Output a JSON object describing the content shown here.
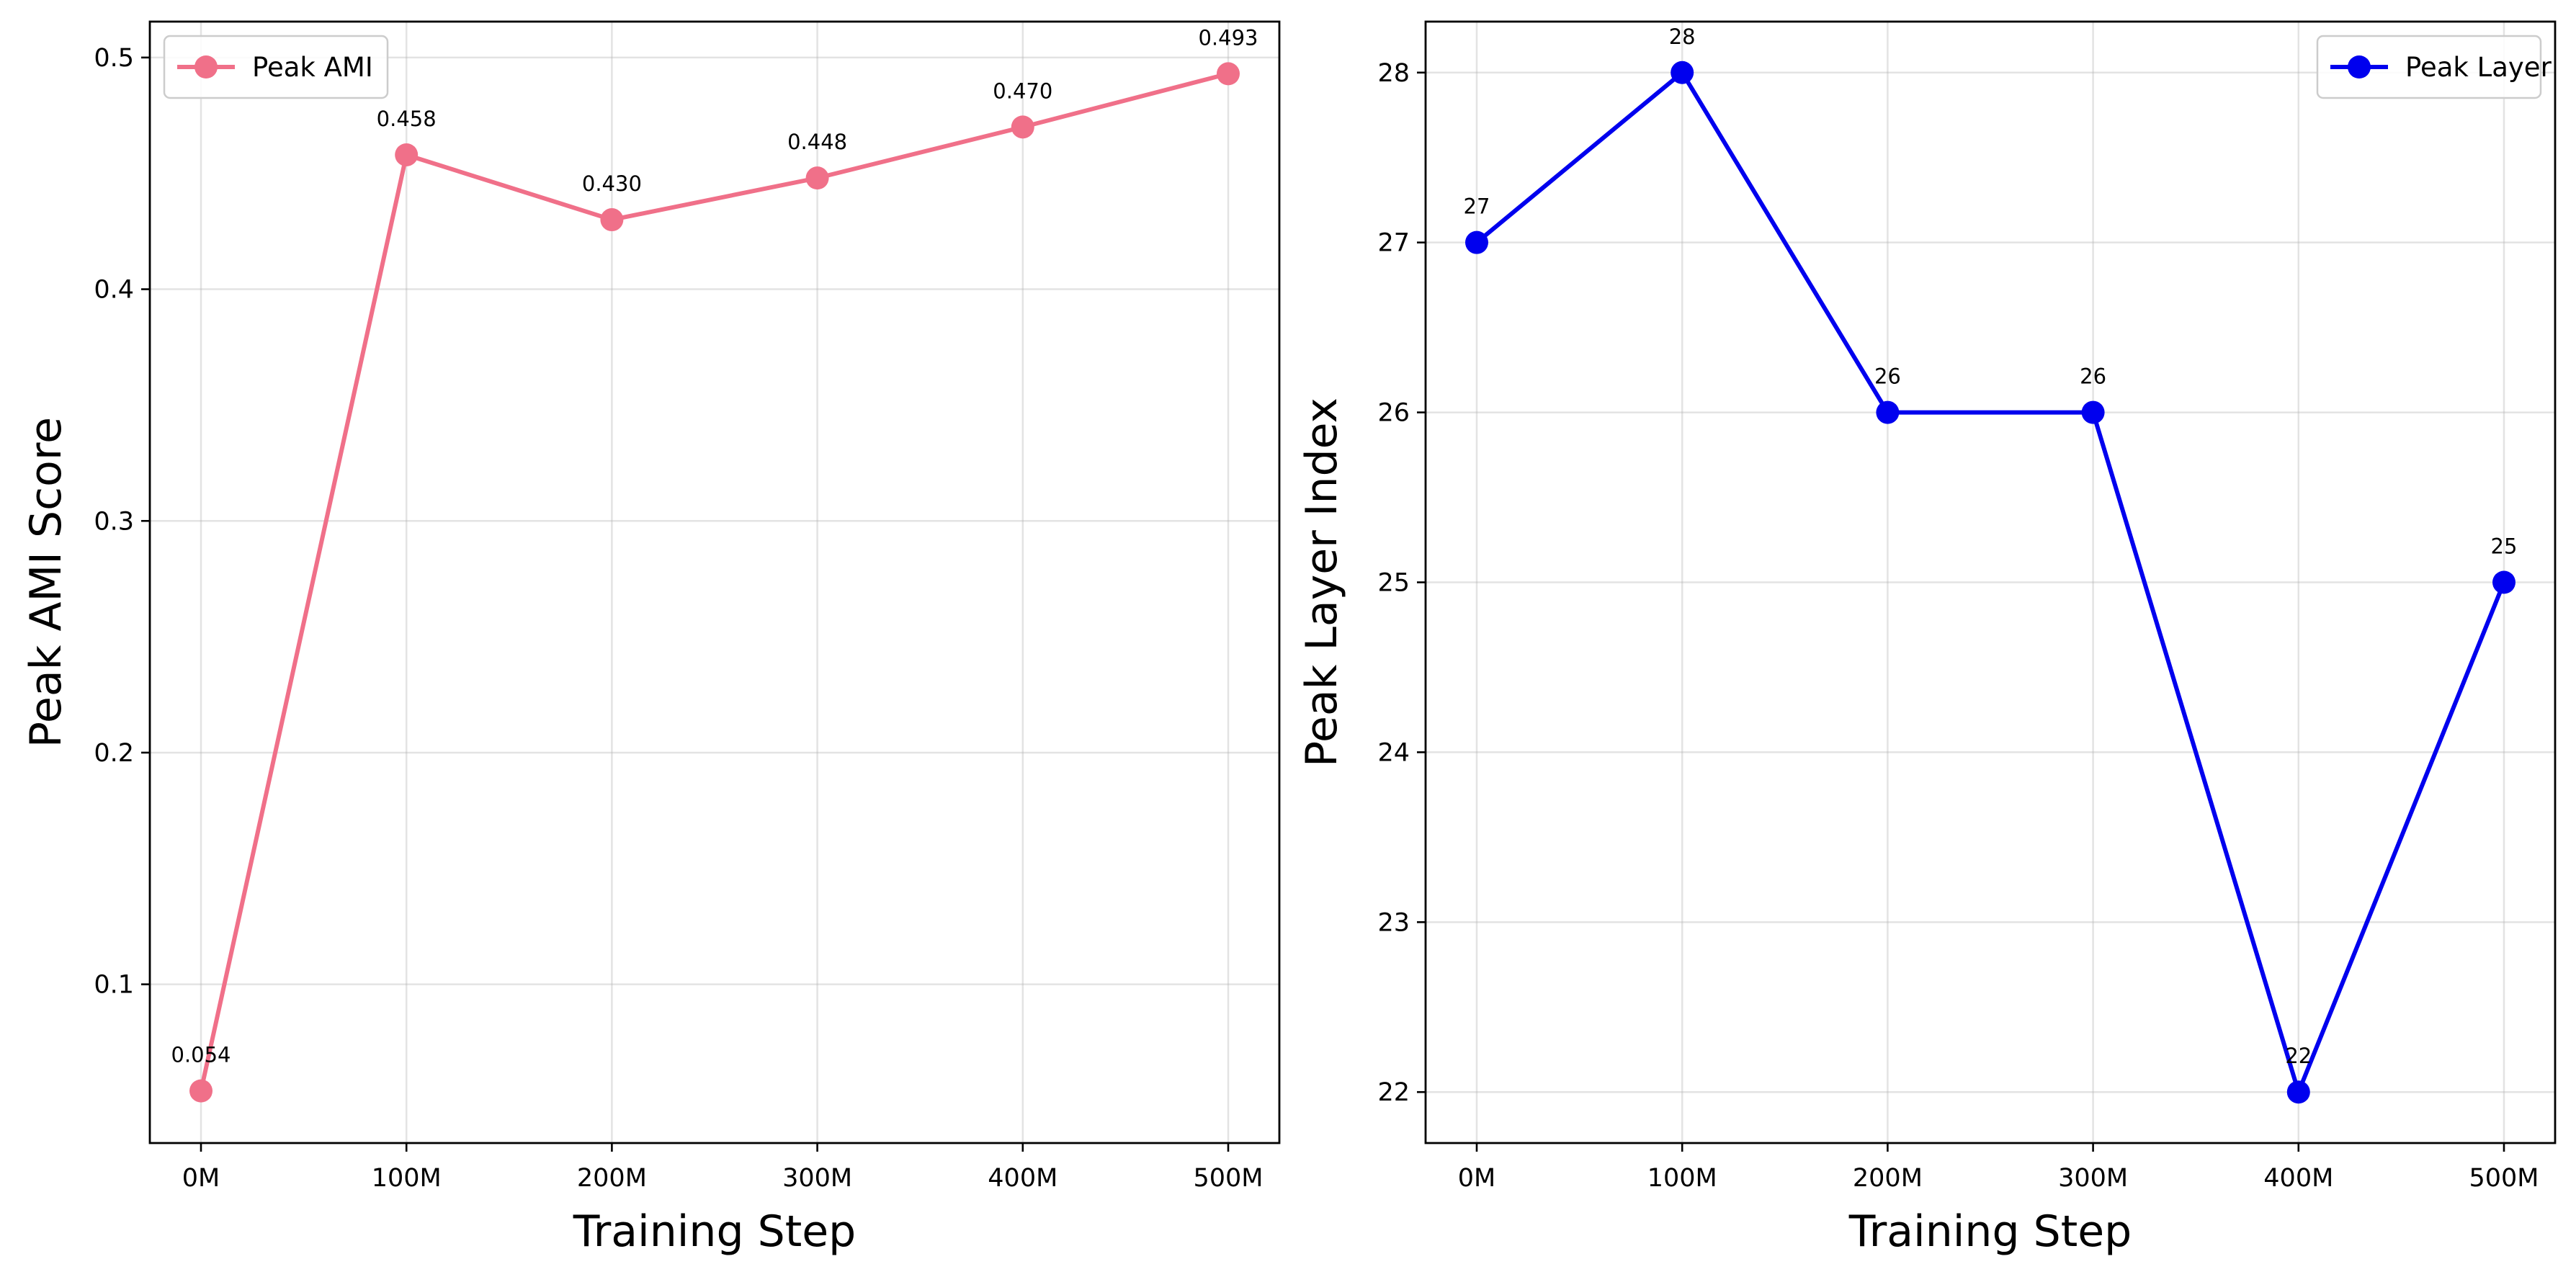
{
  "chart_data": [
    {
      "type": "line",
      "title": "",
      "xlabel": "Training Step",
      "ylabel": "Peak AMI Score",
      "categories": [
        "0M",
        "100M",
        "200M",
        "300M",
        "400M",
        "500M"
      ],
      "yticks": [
        "0.1",
        "0.2",
        "0.3",
        "0.4",
        "0.5"
      ],
      "ylim": [
        0.0315,
        0.5155
      ],
      "grid": true,
      "legend_position": "upper-left",
      "series": [
        {
          "name": "Peak AMI",
          "color": "#f07089",
          "values": [
            0.054,
            0.458,
            0.43,
            0.448,
            0.47,
            0.493
          ],
          "labels": [
            "0.054",
            "0.458",
            "0.430",
            "0.448",
            "0.470",
            "0.493"
          ]
        }
      ]
    },
    {
      "type": "line",
      "title": "",
      "xlabel": "Training Step",
      "ylabel": "Peak Layer Index",
      "categories": [
        "0M",
        "100M",
        "200M",
        "300M",
        "400M",
        "500M"
      ],
      "yticks": [
        "22",
        "23",
        "24",
        "25",
        "26",
        "27",
        "28"
      ],
      "ylim": [
        21.7,
        28.3
      ],
      "grid": true,
      "legend_position": "upper-right",
      "series": [
        {
          "name": "Peak Layer",
          "color": "#0000ee",
          "values": [
            27,
            28,
            26,
            26,
            22,
            25
          ],
          "labels": [
            "27",
            "28",
            "26",
            "26",
            "22",
            "25"
          ]
        }
      ]
    }
  ]
}
